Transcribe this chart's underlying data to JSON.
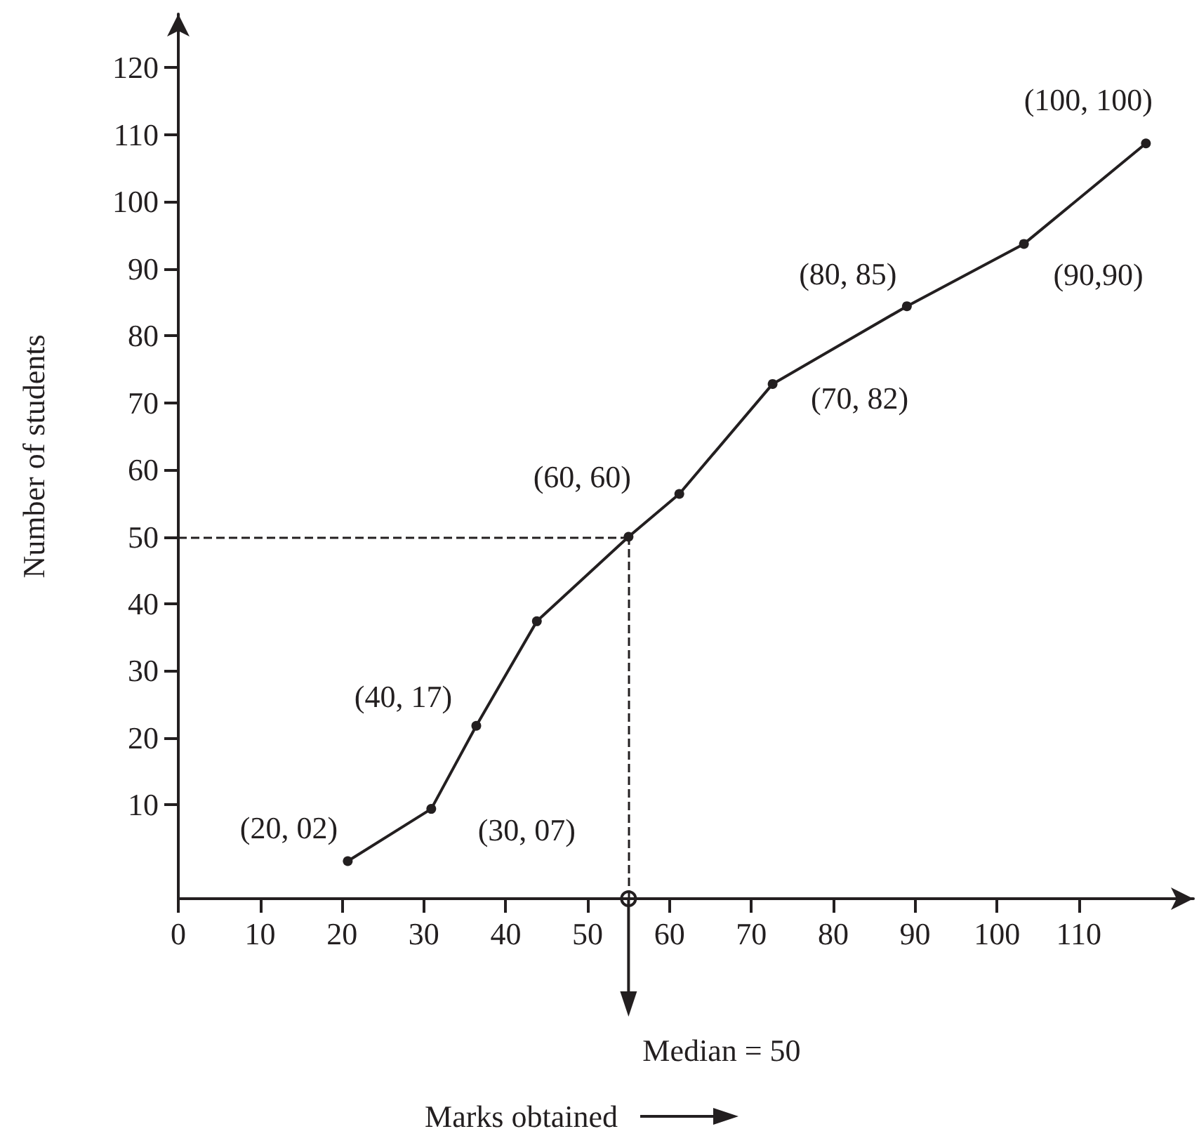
{
  "chart_data": {
    "type": "line",
    "xlabel": "Marks obtained",
    "ylabel": "Number of students",
    "x": [
      20.7,
      30.9,
      36.4,
      43.8,
      55,
      61.2,
      72.6,
      89,
      103.3,
      118.2
    ],
    "values": [
      1.6,
      9.4,
      21.8,
      37.4,
      50,
      56.4,
      72.8,
      84.4,
      93.7,
      108.7
    ],
    "color": "#231f20",
    "marker": "circle",
    "line_style": "solid",
    "xlim": [
      0,
      124
    ],
    "xticks": [
      0,
      10,
      20,
      30,
      40,
      50,
      60,
      70,
      80,
      90,
      100,
      110
    ],
    "ylim": [
      -4,
      128
    ],
    "yticks": [
      10,
      20,
      30,
      40,
      50,
      60,
      70,
      80,
      90,
      100,
      110,
      120
    ],
    "ref_lines": [
      {
        "axis": "y",
        "value": 50,
        "line_style": "dashed"
      },
      {
        "axis": "x",
        "value": 55,
        "line_style": "dashed"
      }
    ],
    "annotations": [
      "Median = 50",
      {
        "text": "(20, 02)",
        "x": 20.7,
        "y": 1.6
      },
      {
        "text": "(30, 07)",
        "x": 30.9,
        "y": 9.4
      },
      {
        "text": "(40, 17)",
        "x": 36.4,
        "y": 21.8
      },
      {
        "text": "(60, 60)",
        "x": 55,
        "y": 50
      },
      {
        "text": "(70, 82)",
        "x": 72.6,
        "y": 72.8
      },
      {
        "text": "(80, 85)",
        "x": 89,
        "y": 84.4
      },
      {
        "text": "(90,90)",
        "x": 103.3,
        "y": 93.7
      },
      {
        "text": "(100, 100)",
        "x": 118.2,
        "y": 108.7
      }
    ]
  }
}
